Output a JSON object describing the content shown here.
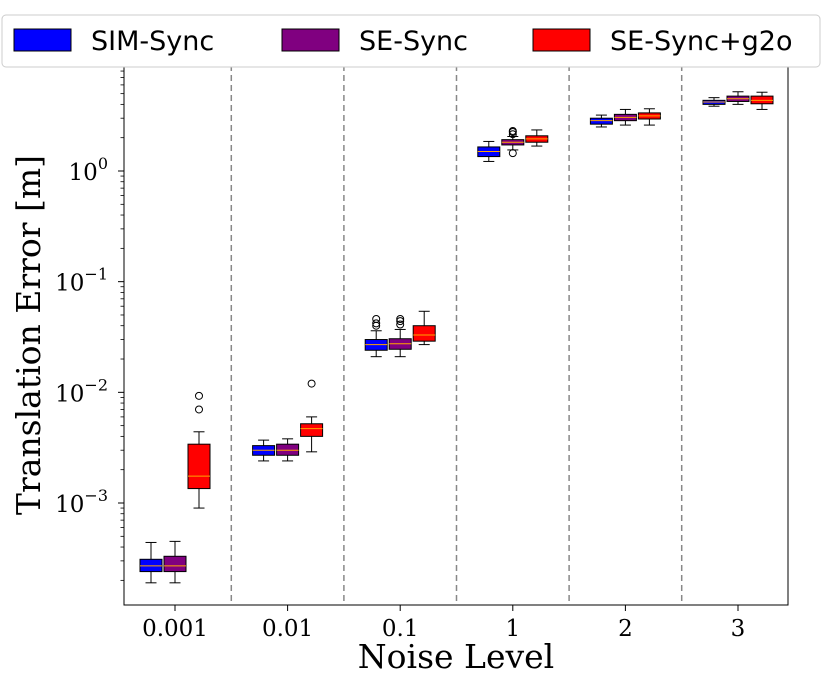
{
  "chart_data": {
    "type": "box",
    "xlabel": "Noise Level",
    "ylabel": "Translation Error [m]",
    "yscale": "log",
    "ylim": [
      0.00015,
      8
    ],
    "y_ticks": [
      {
        "value": 0.001,
        "base": "10",
        "exp": "−3"
      },
      {
        "value": 0.01,
        "base": "10",
        "exp": "−2"
      },
      {
        "value": 0.1,
        "base": "10",
        "exp": "−1"
      },
      {
        "value": 1,
        "base": "10",
        "exp": "0"
      }
    ],
    "categories": [
      "0.001",
      "0.01",
      "0.1",
      "1",
      "2",
      "3"
    ],
    "legend_position": "top",
    "series": [
      {
        "name": "SIM-Sync",
        "color": "#0000ff",
        "boxes": [
          {
            "whislo": 0.00019,
            "q1": 0.00024,
            "med": 0.00027,
            "q3": 0.00031,
            "whishi": 0.00044,
            "fliers": []
          },
          {
            "whislo": 0.0024,
            "q1": 0.0027,
            "med": 0.003,
            "q3": 0.0033,
            "whishi": 0.0037,
            "fliers": []
          },
          {
            "whislo": 0.021,
            "q1": 0.024,
            "med": 0.027,
            "q3": 0.03,
            "whishi": 0.036,
            "fliers": [
              0.04,
              0.042,
              0.046
            ]
          },
          {
            "whislo": 1.22,
            "q1": 1.35,
            "med": 1.5,
            "q3": 1.65,
            "whishi": 1.85,
            "fliers": []
          },
          {
            "whislo": 2.5,
            "q1": 2.65,
            "med": 2.85,
            "q3": 3.0,
            "whishi": 3.2,
            "fliers": []
          },
          {
            "whislo": 3.85,
            "q1": 4.0,
            "med": 4.2,
            "q3": 4.35,
            "whishi": 4.6,
            "fliers": []
          }
        ]
      },
      {
        "name": "SE-Sync",
        "color": "#800080",
        "boxes": [
          {
            "whislo": 0.00019,
            "q1": 0.00024,
            "med": 0.00027,
            "q3": 0.00033,
            "whishi": 0.00045,
            "fliers": []
          },
          {
            "whislo": 0.0024,
            "q1": 0.0027,
            "med": 0.003,
            "q3": 0.0034,
            "whishi": 0.0038,
            "fliers": []
          },
          {
            "whislo": 0.021,
            "q1": 0.0245,
            "med": 0.0275,
            "q3": 0.0305,
            "whishi": 0.037,
            "fliers": [
              0.041,
              0.044,
              0.046
            ]
          },
          {
            "whislo": 1.55,
            "q1": 1.72,
            "med": 1.82,
            "q3": 1.92,
            "whishi": 2.05,
            "fliers": [
              1.45,
              2.15,
              2.25,
              2.3
            ]
          },
          {
            "whislo": 2.6,
            "q1": 2.85,
            "med": 3.05,
            "q3": 3.25,
            "whishi": 3.6,
            "fliers": []
          },
          {
            "whislo": 4.0,
            "q1": 4.25,
            "med": 4.5,
            "q3": 4.75,
            "whishi": 5.2,
            "fliers": []
          }
        ]
      },
      {
        "name": "SE-Sync+g2o",
        "color": "#ff0000",
        "boxes": [
          {
            "whislo": 0.0009,
            "q1": 0.00135,
            "med": 0.00175,
            "q3": 0.0034,
            "whishi": 0.0044,
            "fliers": [
              0.007,
              0.0093
            ]
          },
          {
            "whislo": 0.0029,
            "q1": 0.004,
            "med": 0.0047,
            "q3": 0.0052,
            "whishi": 0.006,
            "fliers": [
              0.012
            ]
          },
          {
            "whislo": 0.027,
            "q1": 0.029,
            "med": 0.033,
            "q3": 0.04,
            "whishi": 0.054,
            "fliers": []
          },
          {
            "whislo": 1.68,
            "q1": 1.82,
            "med": 1.95,
            "q3": 2.08,
            "whishi": 2.35,
            "fliers": []
          },
          {
            "whislo": 2.6,
            "q1": 2.95,
            "med": 3.15,
            "q3": 3.35,
            "whishi": 3.65,
            "fliers": []
          },
          {
            "whislo": 3.6,
            "q1": 4.05,
            "med": 4.35,
            "q3": 4.75,
            "whishi": 5.15,
            "fliers": []
          }
        ]
      }
    ]
  }
}
